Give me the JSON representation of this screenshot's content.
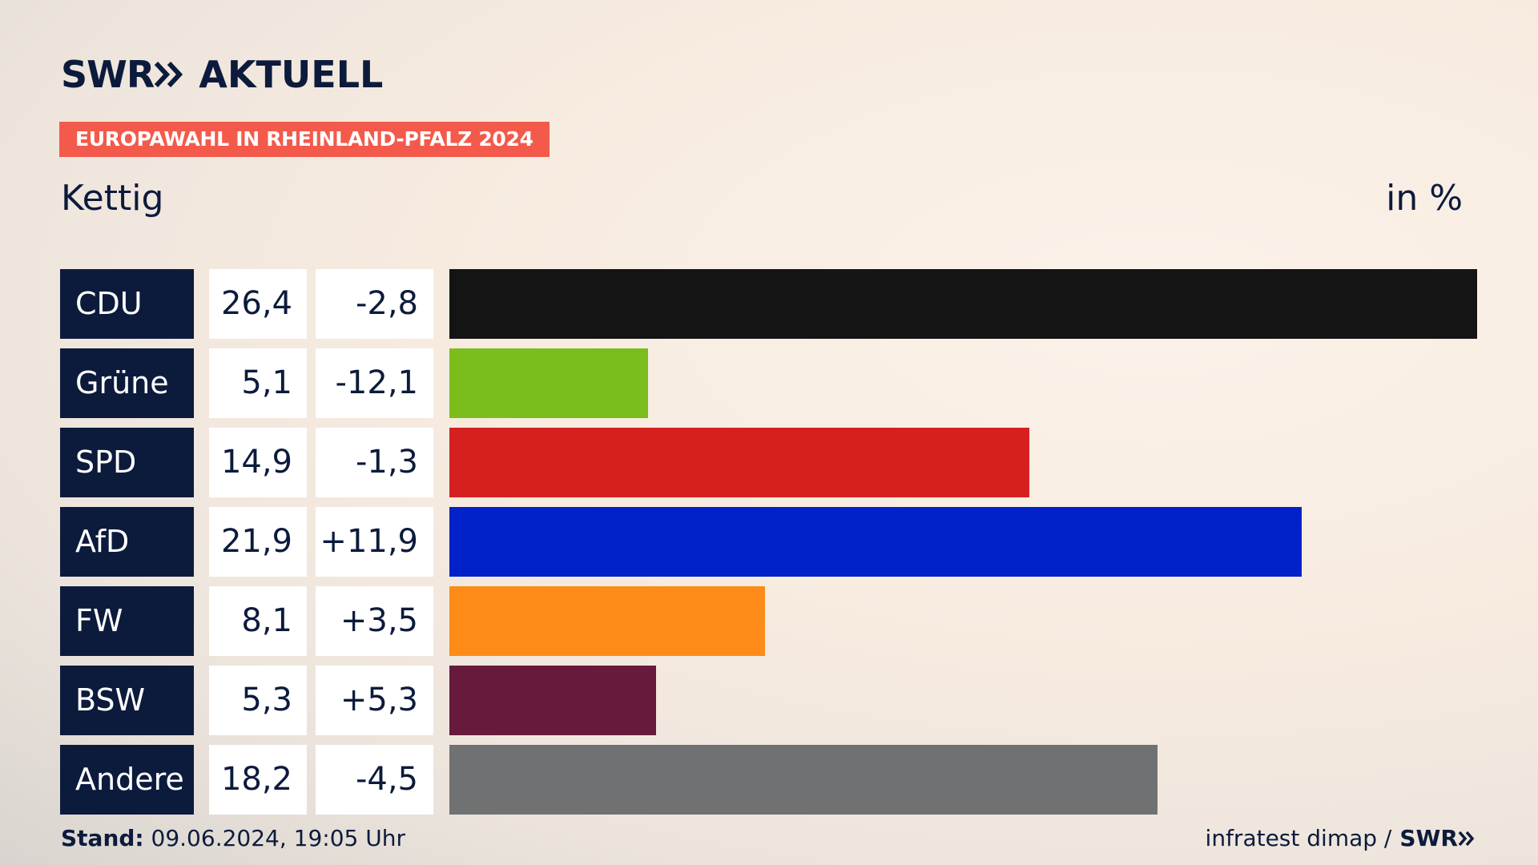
{
  "header": {
    "brand": "SWR",
    "brand_suffix": "AKTUELL",
    "badge": "EUROPAWAHL IN RHEINLAND-PFALZ 2024",
    "place": "Kettig",
    "unit": "in %"
  },
  "footer": {
    "stand_label": "Stand:",
    "stand_value": "09.06.2024, 19:05 Uhr",
    "source": "infratest dimap /",
    "source_brand": "SWR"
  },
  "colors": {
    "navy": "#0c1b3c",
    "badge": "#f35a4b"
  },
  "chart_data": {
    "type": "bar",
    "title": "Kettig",
    "unit": "in %",
    "categories": [
      "CDU",
      "Grüne",
      "SPD",
      "AfD",
      "FW",
      "BSW",
      "Andere"
    ],
    "values": [
      26.4,
      5.1,
      14.9,
      21.9,
      8.1,
      5.3,
      18.2
    ],
    "value_labels": [
      "26,4",
      "5,1",
      "14,9",
      "21,9",
      "8,1",
      "5,3",
      "18,2"
    ],
    "diff_labels": [
      "-2,8",
      "-12,1",
      "-1,3",
      "+11,9",
      "+3,5",
      "+5,3",
      "-4,5"
    ],
    "colors": [
      "#141414",
      "#7bbd1d",
      "#d62020",
      "#0022c8",
      "#fd8b17",
      "#681a3d",
      "#707173"
    ],
    "xlim": [
      0,
      26.4
    ]
  }
}
